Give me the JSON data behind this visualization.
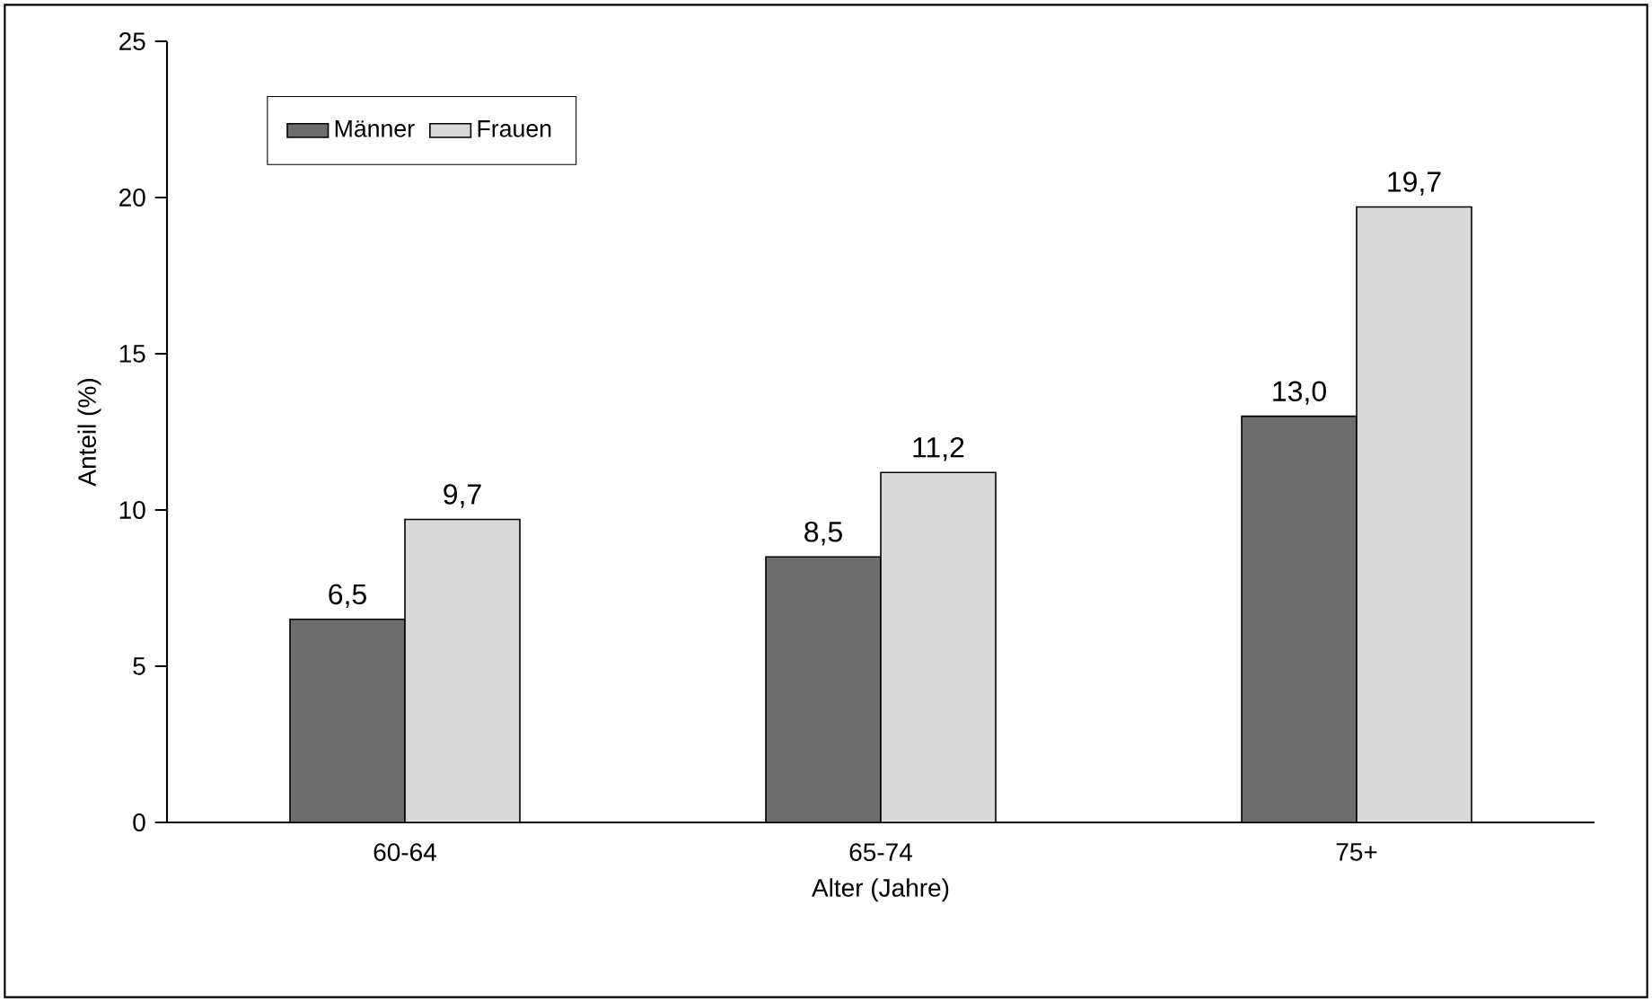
{
  "chart_data": {
    "type": "bar",
    "xlabel": "Alter (Jahre)",
    "ylabel": "Anteil (%)",
    "categories": [
      "60-64",
      "65-74",
      "75+"
    ],
    "series": [
      {
        "name": "Männer",
        "color": "#6d6d6d",
        "values": [
          6.5,
          8.5,
          13.0
        ],
        "value_labels": [
          "6,5",
          "8,5",
          "13,0"
        ]
      },
      {
        "name": "Frauen",
        "color": "#d9d9d9",
        "values": [
          9.7,
          11.2,
          19.7
        ],
        "value_labels": [
          "9,7",
          "11,2",
          "19,7"
        ]
      }
    ],
    "ylim": [
      0,
      25
    ],
    "yticks": [
      0,
      5,
      10,
      15,
      20,
      25
    ],
    "legend": "top left",
    "grid": false
  }
}
